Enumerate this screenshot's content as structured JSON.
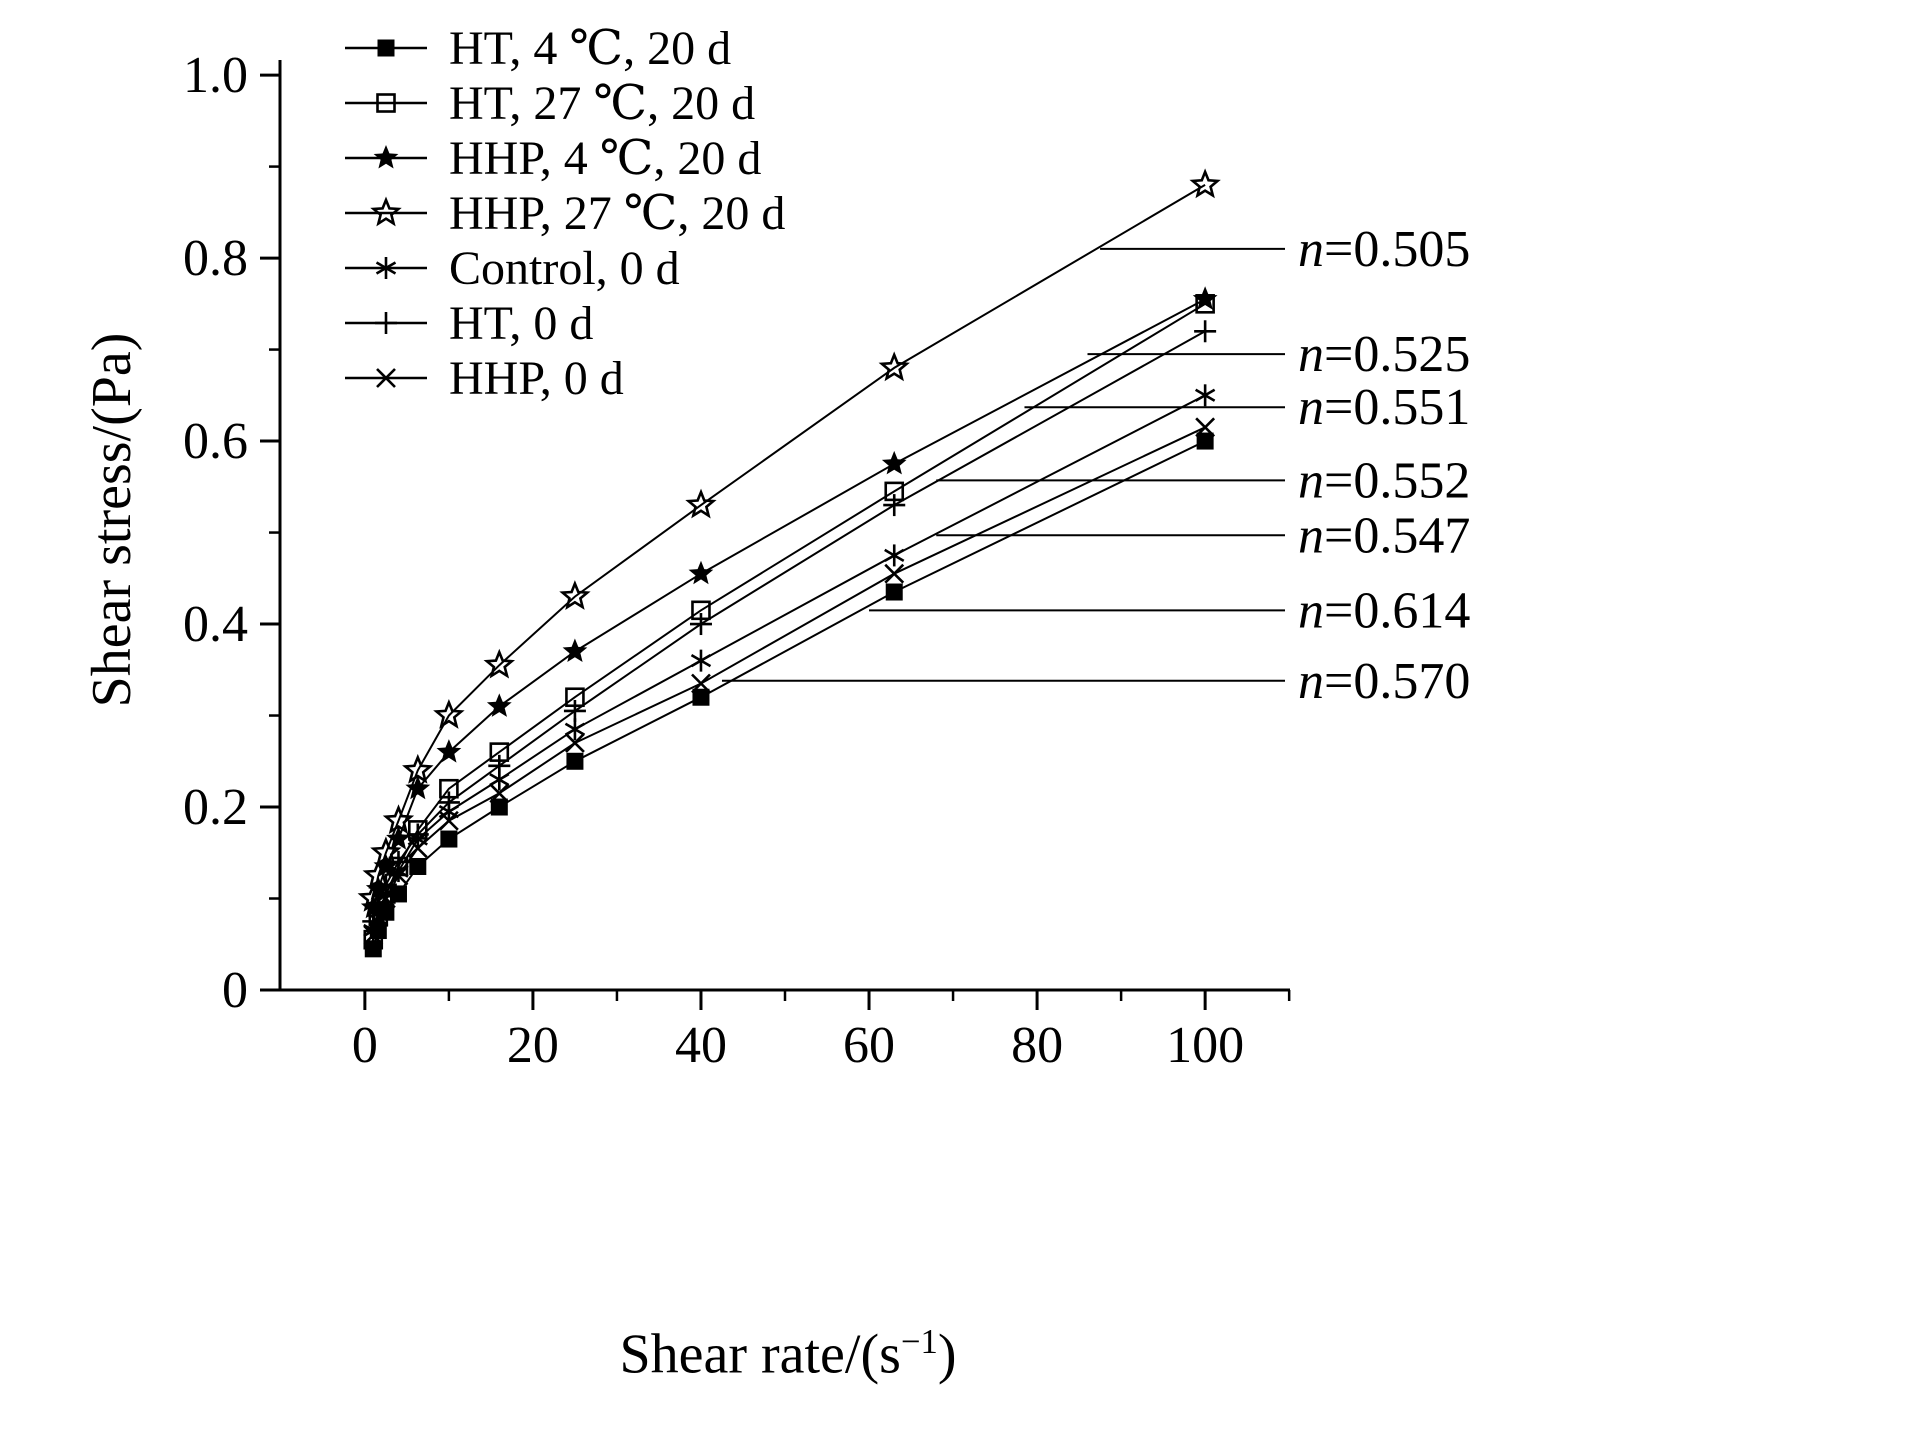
{
  "figure": {
    "background": "#ffffff",
    "line_color": "#000000"
  },
  "chart_data": {
    "type": "line",
    "title": "",
    "xlabel": "Shear rate/(s⁻¹)",
    "xlabel_parts": {
      "pre": "Shear rate/(s",
      "sup": "−1",
      "post": ")"
    },
    "ylabel": "Shear stress/(Pa)",
    "xlim": [
      -10,
      110
    ],
    "ylim": [
      0,
      1.0
    ],
    "grid": false,
    "legend_position": "top-left",
    "x_ticks": {
      "values": [
        0,
        20,
        40,
        60,
        80,
        100
      ],
      "labels": [
        "0",
        "20",
        "40",
        "60",
        "80",
        "100"
      ],
      "minor": [
        10,
        30,
        50,
        70,
        90,
        110
      ]
    },
    "y_ticks": {
      "values": [
        0,
        0.2,
        0.4,
        0.6,
        0.8,
        1.0
      ],
      "labels": [
        "0",
        "0.2",
        "0.4",
        "0.6",
        "0.8",
        "1.0"
      ],
      "minor": [
        0.1,
        0.3,
        0.5,
        0.7,
        0.9
      ]
    },
    "x": [
      1,
      1.6,
      2.5,
      4,
      6.3,
      10,
      16,
      25,
      40,
      63,
      100
    ],
    "series": [
      {
        "name": "HT, 4 ℃, 20 d",
        "marker": "filled-square",
        "n": "0.614",
        "values": [
          0.045,
          0.065,
          0.085,
          0.105,
          0.135,
          0.165,
          0.2,
          0.25,
          0.32,
          0.435,
          0.6
        ]
      },
      {
        "name": "HT, 27 ℃, 20 d",
        "marker": "open-square",
        "n": "0.551",
        "values": [
          0.055,
          0.08,
          0.105,
          0.135,
          0.175,
          0.22,
          0.26,
          0.32,
          0.415,
          0.545,
          0.75
        ]
      },
      {
        "name": "HHP, 4 ℃, 20 d",
        "marker": "filled-star",
        "n": "0.525",
        "values": [
          0.09,
          0.11,
          0.135,
          0.165,
          0.22,
          0.26,
          0.31,
          0.37,
          0.455,
          0.575,
          0.755
        ]
      },
      {
        "name": "HHP, 27 ℃, 20 d",
        "marker": "open-star",
        "n": "0.505",
        "values": [
          0.1,
          0.125,
          0.15,
          0.185,
          0.24,
          0.3,
          0.355,
          0.43,
          0.53,
          0.68,
          0.88
        ]
      },
      {
        "name": "Control, 0 d",
        "marker": "asterisk",
        "n": "0.547",
        "values": [
          0.065,
          0.085,
          0.105,
          0.13,
          0.165,
          0.195,
          0.23,
          0.285,
          0.36,
          0.475,
          0.65
        ]
      },
      {
        "name": "HT, 0 d",
        "marker": "plus",
        "n": "0.552",
        "values": [
          0.075,
          0.095,
          0.115,
          0.14,
          0.17,
          0.205,
          0.245,
          0.305,
          0.4,
          0.53,
          0.72
        ]
      },
      {
        "name": "HHP, 0 d",
        "marker": "x",
        "n": "0.570",
        "values": [
          0.06,
          0.08,
          0.1,
          0.125,
          0.155,
          0.185,
          0.215,
          0.27,
          0.335,
          0.455,
          0.615
        ]
      }
    ],
    "annotations": [
      {
        "var": "n",
        "text": "=0.505",
        "y": 0.81,
        "x_from": 87.5
      },
      {
        "var": "n",
        "text": "=0.525",
        "y": 0.695,
        "x_from": 86.0
      },
      {
        "var": "n",
        "text": "=0.551",
        "y": 0.637,
        "x_from": 78.5
      },
      {
        "var": "n",
        "text": "=0.552",
        "y": 0.557,
        "x_from": 68.0
      },
      {
        "var": "n",
        "text": "=0.547",
        "y": 0.497,
        "x_from": 68.0
      },
      {
        "var": "n",
        "text": "=0.614",
        "y": 0.415,
        "x_from": 60.0
      },
      {
        "var": "n",
        "text": "=0.570",
        "y": 0.338,
        "x_from": 42.5
      }
    ]
  }
}
